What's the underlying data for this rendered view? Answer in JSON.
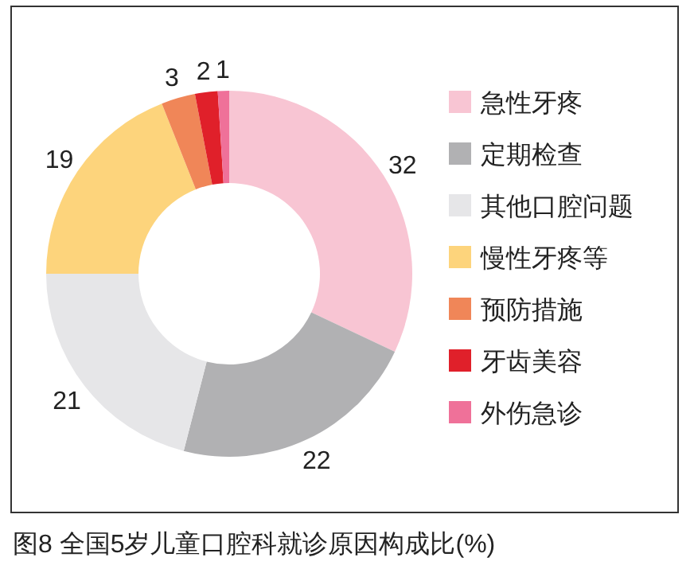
{
  "chart_data": {
    "type": "donut",
    "title": "图8 全国5岁儿童口腔科就诊原因构成比(%)",
    "categories": [
      "急性牙疼",
      "定期检查",
      "其他口腔问题",
      "慢性牙疼等",
      "预防措施",
      "牙齿美容",
      "外伤急诊"
    ],
    "values": [
      32,
      22,
      21,
      19,
      3,
      2,
      1
    ],
    "colors": [
      "#f8c5d3",
      "#b1b1b3",
      "#e6e6e8",
      "#fdd47c",
      "#f08658",
      "#e0202a",
      "#ef7199"
    ],
    "data_labels": true,
    "legend": "right"
  }
}
